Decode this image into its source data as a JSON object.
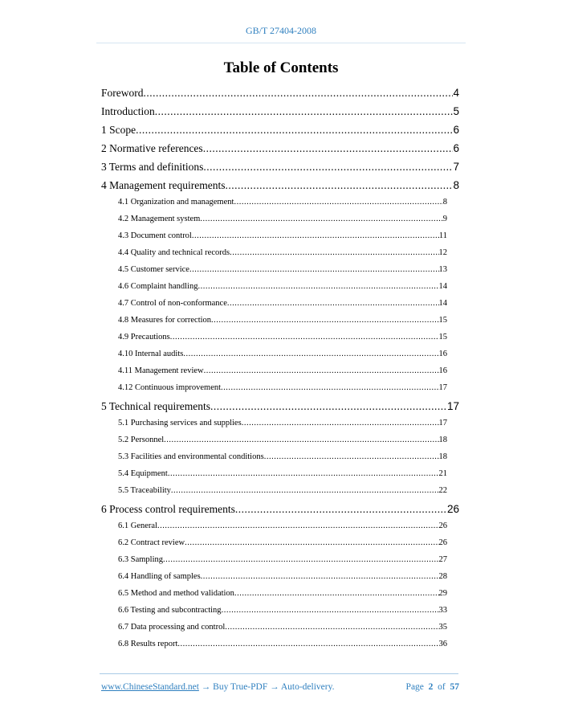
{
  "header": {
    "doc_id": "GB/T 27404-2008"
  },
  "title": "Table of Contents",
  "toc": [
    {
      "level": 1,
      "label": "Foreword",
      "page": "4"
    },
    {
      "level": 1,
      "label": "Introduction",
      "page": "5"
    },
    {
      "level": 1,
      "label": "1 Scope",
      "page": "6"
    },
    {
      "level": 1,
      "label": "2 Normative references",
      "page": "6"
    },
    {
      "level": 1,
      "label": "3 Terms and definitions",
      "page": "7"
    },
    {
      "level": 1,
      "label": "4 Management requirements",
      "page": "8"
    },
    {
      "level": 2,
      "label": "4.1 Organization and management",
      "page": "8"
    },
    {
      "level": 2,
      "label": "4.2 Management system",
      "page": "9"
    },
    {
      "level": 2,
      "label": "4.3 Document control",
      "page": "11"
    },
    {
      "level": 2,
      "label": "4.4 Quality and technical records",
      "page": "12"
    },
    {
      "level": 2,
      "label": "4.5 Customer service",
      "page": "13"
    },
    {
      "level": 2,
      "label": "4.6 Complaint handling",
      "page": "14"
    },
    {
      "level": 2,
      "label": "4.7 Control of non-conformance",
      "page": "14"
    },
    {
      "level": 2,
      "label": "4.8 Measures for correction",
      "page": "15"
    },
    {
      "level": 2,
      "label": "4.9 Precautions",
      "page": "15"
    },
    {
      "level": 2,
      "label": "4.10 Internal audits",
      "page": "16"
    },
    {
      "level": 2,
      "label": "4.11 Management review",
      "page": "16"
    },
    {
      "level": 2,
      "label": "4.12 Continuous improvement",
      "page": "17"
    },
    {
      "level": 1,
      "label": "5 Technical requirements",
      "page": "17"
    },
    {
      "level": 2,
      "label": "5.1 Purchasing services and supplies",
      "page": "17"
    },
    {
      "level": 2,
      "label": "5.2 Personnel",
      "page": "18"
    },
    {
      "level": 2,
      "label": "5.3 Facilities and environmental conditions",
      "page": "18"
    },
    {
      "level": 2,
      "label": "5.4 Equipment",
      "page": "21"
    },
    {
      "level": 2,
      "label": "5.5 Traceability",
      "page": "22"
    },
    {
      "level": 1,
      "label": "6 Process control requirements",
      "page": "26"
    },
    {
      "level": 2,
      "label": "6.1 General",
      "page": "26"
    },
    {
      "level": 2,
      "label": "6.2 Contract review",
      "page": "26"
    },
    {
      "level": 2,
      "label": "6.3 Sampling",
      "page": "27"
    },
    {
      "level": 2,
      "label": "6.4 Handling of samples",
      "page": "28"
    },
    {
      "level": 2,
      "label": "6.5 Method and method validation",
      "page": "29"
    },
    {
      "level": 2,
      "label": "6.6 Testing and subcontracting",
      "page": "33"
    },
    {
      "level": 2,
      "label": "6.7 Data processing and control",
      "page": "35"
    },
    {
      "level": 2,
      "label": "6.8 Results report",
      "page": "36"
    }
  ],
  "footer": {
    "link": "www.ChineseStandard.net",
    "promo": " → Buy True-PDF → Auto-delivery.",
    "page_prefix": "Page",
    "page_current": "2",
    "page_of": "of",
    "page_total": "57"
  },
  "colors": {
    "accent": "#2e7fbf"
  }
}
